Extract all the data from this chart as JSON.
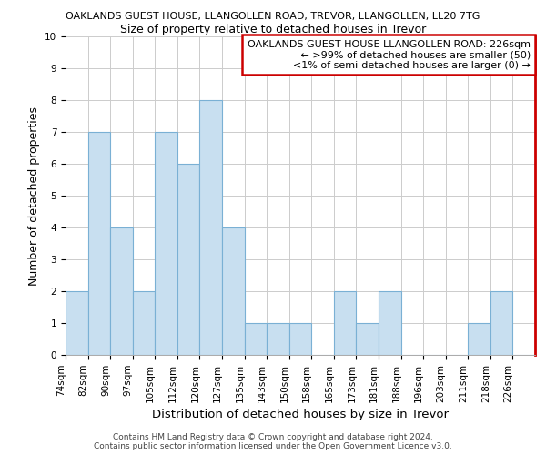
{
  "title_line1": "OAKLANDS GUEST HOUSE, LLANGOLLEN ROAD, TREVOR, LLANGOLLEN, LL20 7TG",
  "title_line2": "Size of property relative to detached houses in Trevor",
  "xlabel": "Distribution of detached houses by size in Trevor",
  "ylabel": "Number of detached properties",
  "bin_labels": [
    "74sqm",
    "82sqm",
    "90sqm",
    "97sqm",
    "105sqm",
    "112sqm",
    "120sqm",
    "127sqm",
    "135sqm",
    "143sqm",
    "150sqm",
    "158sqm",
    "165sqm",
    "173sqm",
    "181sqm",
    "188sqm",
    "196sqm",
    "203sqm",
    "211sqm",
    "218sqm",
    "226sqm"
  ],
  "bar_heights": [
    2,
    7,
    4,
    2,
    7,
    6,
    8,
    4,
    1,
    1,
    1,
    0,
    2,
    1,
    2,
    0,
    0,
    0,
    1,
    2,
    0
  ],
  "bar_color": "#c8dff0",
  "bar_edge_color": "#7ab0d4",
  "ylim": [
    0,
    10
  ],
  "yticks": [
    0,
    1,
    2,
    3,
    4,
    5,
    6,
    7,
    8,
    9,
    10
  ],
  "legend_title": "OAKLANDS GUEST HOUSE LLANGOLLEN ROAD: 226sqm",
  "legend_line1": "← >99% of detached houses are smaller (50)",
  "legend_line2": "<1% of semi-detached houses are larger (0) →",
  "legend_box_color": "#ffffff",
  "legend_box_edge_color": "#cc0000",
  "property_line_color": "#cc0000",
  "footer_line1": "Contains HM Land Registry data © Crown copyright and database right 2024.",
  "footer_line2": "Contains public sector information licensed under the Open Government Licence v3.0.",
  "background_color": "#ffffff",
  "grid_color": "#cccccc",
  "title1_fontsize": 8.0,
  "title2_fontsize": 9.0,
  "ylabel_fontsize": 9.0,
  "xlabel_fontsize": 9.5,
  "tick_fontsize": 7.5,
  "legend_fontsize": 8.0,
  "footer_fontsize": 6.5
}
